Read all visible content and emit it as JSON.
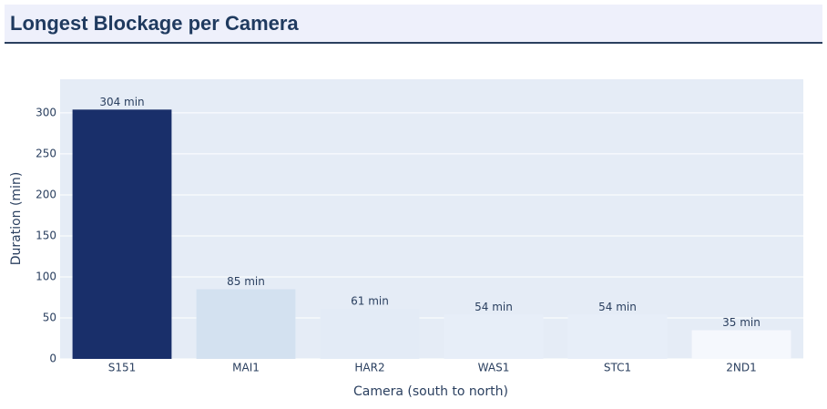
{
  "chart_data": {
    "type": "bar",
    "title": "Longest Blockage per Camera",
    "x_label": "Camera (south to north)",
    "y_label": "Duration (min)",
    "categories": [
      "S151",
      "MAI1",
      "HAR2",
      "WAS1",
      "STC1",
      "2ND1"
    ],
    "values": [
      304,
      85,
      61,
      54,
      54,
      35
    ],
    "value_labels": [
      "304 min",
      "85 min",
      "61 min",
      "54 min",
      "54 min",
      "35 min"
    ],
    "colors": [
      "#192f6a",
      "#d3e1f0",
      "#e3ebf6",
      "#e7eef8",
      "#e7eef8",
      "#f5f8fd"
    ],
    "ylim": [
      0,
      341
    ],
    "yticks": [
      0,
      50,
      100,
      150,
      200,
      250,
      300
    ],
    "grid": true
  }
}
